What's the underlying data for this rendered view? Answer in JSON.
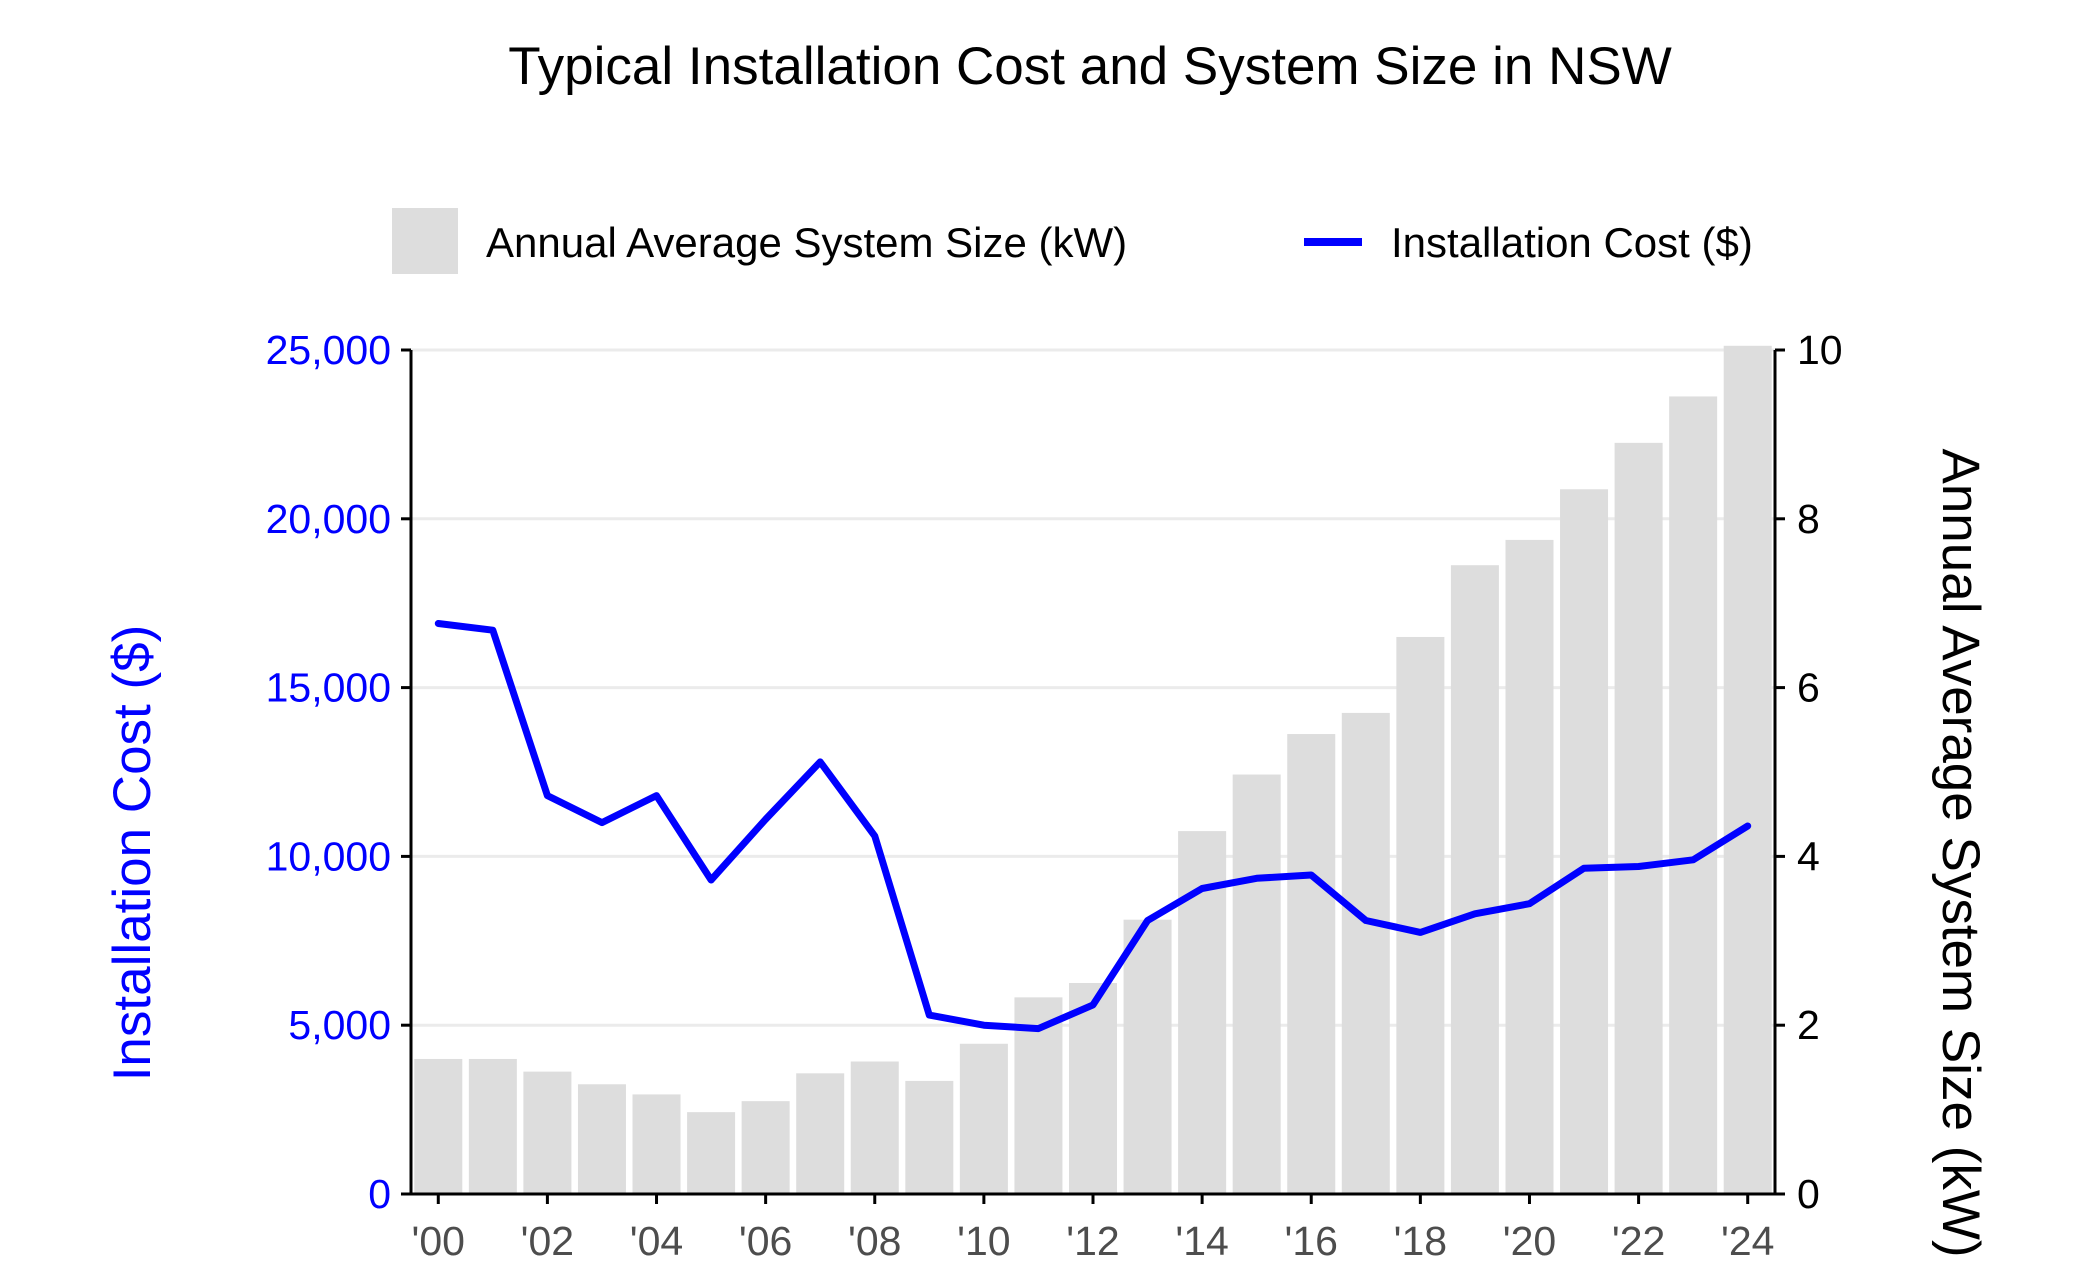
{
  "chart_data": {
    "type": "bar+line",
    "title": "Typical Installation Cost and System Size in NSW",
    "x": [
      2000,
      2001,
      2002,
      2003,
      2004,
      2005,
      2006,
      2007,
      2008,
      2009,
      2010,
      2011,
      2012,
      2013,
      2014,
      2015,
      2016,
      2017,
      2018,
      2019,
      2020,
      2021,
      2022,
      2023,
      2024
    ],
    "x_tick_labels": [
      "'00",
      "'02",
      "'04",
      "'06",
      "'08",
      "'10",
      "'12",
      "'14",
      "'16",
      "'18",
      "'20",
      "'22",
      "'24"
    ],
    "ylabel_left": "Installation Cost ($)",
    "ylabel_right": "Annual Average System Size (kW)",
    "ylim_left": [
      0,
      25000
    ],
    "ylim_right": [
      0,
      10
    ],
    "y_left_ticks": [
      "0",
      "5,000",
      "10,000",
      "15,000",
      "20,000",
      "25,000"
    ],
    "y_right_ticks": [
      "0",
      "2",
      "4",
      "6",
      "8",
      "10"
    ],
    "legend_position": "top",
    "grid": true,
    "series": [
      {
        "name": "Annual Average System Size (kW)",
        "type": "bar",
        "axis": "right",
        "color": "#dddddd",
        "values": [
          1.6,
          1.6,
          1.45,
          1.3,
          1.18,
          0.97,
          1.1,
          1.43,
          1.57,
          1.34,
          1.78,
          2.33,
          2.5,
          3.25,
          4.3,
          4.97,
          5.45,
          5.7,
          6.6,
          7.45,
          7.75,
          8.35,
          8.9,
          9.45,
          10.05
        ]
      },
      {
        "name": "Installation Cost ($)",
        "type": "line",
        "axis": "left",
        "color": "#0000ff",
        "values": [
          16900,
          16700,
          11800,
          11000,
          11800,
          9300,
          11100,
          12800,
          10600,
          5300,
          5000,
          4900,
          5600,
          8100,
          9050,
          9350,
          9450,
          8100,
          7750,
          8300,
          8600,
          9650,
          9700,
          9900,
          10900
        ]
      }
    ]
  },
  "colors": {
    "line": "#0000ff",
    "bar": "#dddddd",
    "left_axis_text": "#0000ff",
    "grid": "#ebebeb"
  }
}
